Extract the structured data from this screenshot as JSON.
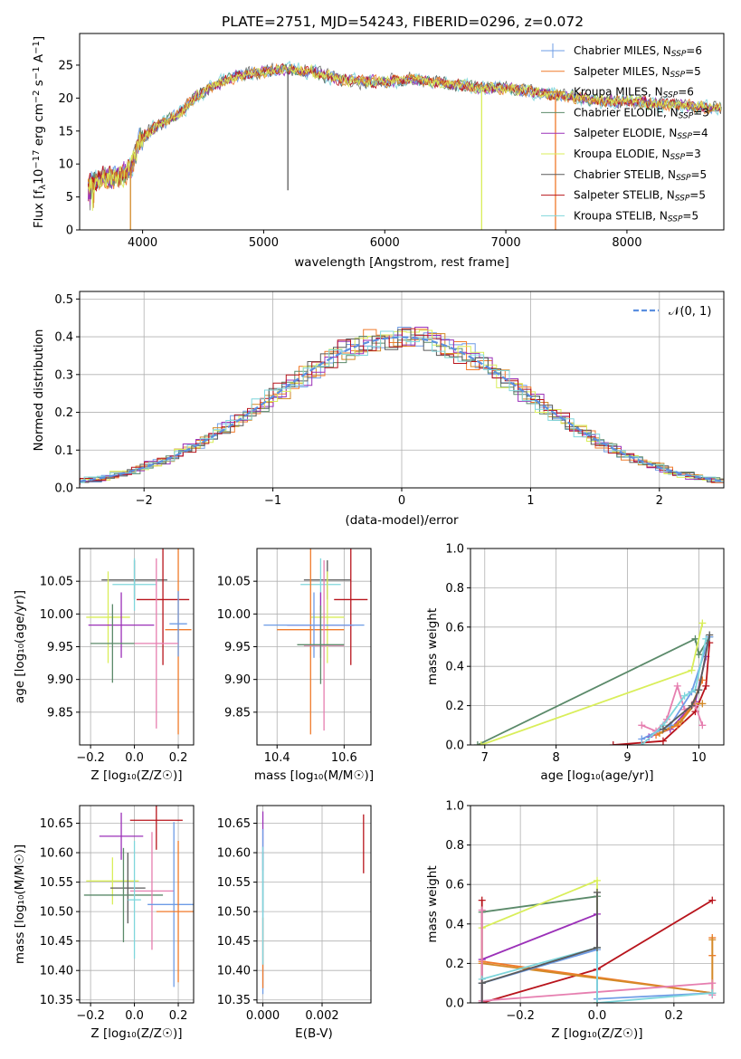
{
  "colors": {
    "Chabrier MILES": "#6e9ce6",
    "Salpeter MILES": "#f07a2a",
    "Kroupa MILES": "#d38a28",
    "Chabrier ELODIE": "#5b8a6a",
    "Salpeter ELODIE": "#9b30b8",
    "Kroupa ELODIE": "#d9ee5a",
    "Chabrier STELIB": "#5a5a5a",
    "Salpeter STELIB": "#b8141c",
    "Kroupa STELIB": "#7fd6dc",
    "pink": "#e67fb0",
    "gauss": "#5b8fe0"
  },
  "chart_data": [
    {
      "id": "spectrum",
      "type": "line",
      "title": "PLATE=2751, MJD=54243, FIBERID=0296, z=0.072",
      "xlabel": "wavelength [Angstrom, rest frame]",
      "ylabel_parts": [
        "Flux [f",
        "λ",
        "10",
        "−17",
        " erg cm",
        "−2",
        " s",
        "−1",
        " A",
        "−1",
        "]"
      ],
      "xlim": [
        3480,
        8800
      ],
      "ylim": [
        0,
        29.8
      ],
      "xticks": [
        "4000",
        "5000",
        "6000",
        "7000",
        "8000"
      ],
      "yticks": [
        "0",
        "5",
        "10",
        "15",
        "20",
        "25"
      ],
      "continuum_x": [
        3550,
        3700,
        3800,
        3900,
        3960,
        4000,
        4100,
        4200,
        4300,
        4400,
        4500,
        4600,
        4800,
        5000,
        5200,
        5400,
        5600,
        5800,
        6000,
        6200,
        6400,
        6600,
        6800,
        7000,
        7200,
        7400,
        7600,
        7800,
        8000,
        8200,
        8400,
        8600,
        8800
      ],
      "continuum_y": [
        7,
        8,
        8,
        9,
        13,
        14,
        15.5,
        16.5,
        17.5,
        19.5,
        21,
        22,
        23.5,
        24,
        24.5,
        24,
        23,
        22.5,
        22.5,
        22.8,
        22.5,
        22,
        21.5,
        21.5,
        21,
        20.5,
        20,
        19.5,
        19.5,
        19.2,
        19,
        18.6,
        18.5
      ],
      "spikes": [
        {
          "x": 3900,
          "to": 0,
          "color": "#d38a28"
        },
        {
          "x": 5200,
          "to": 6,
          "color": "#5a5a5a"
        },
        {
          "x": 6800,
          "to": 0,
          "color": "#d9ee5a"
        },
        {
          "x": 7410,
          "to": 0,
          "color": "#f07a2a"
        }
      ],
      "legend": [
        {
          "name": "Chabrier MILES",
          "sub": "SSP",
          "n": "=6"
        },
        {
          "name": "Salpeter MILES",
          "sub": "SSP",
          "n": "=5"
        },
        {
          "name": "Kroupa MILES",
          "sub": "SSP",
          "n": "=6"
        },
        {
          "name": "Chabrier ELODIE",
          "sub": "SSP",
          "n": "=3"
        },
        {
          "name": "Salpeter ELODIE",
          "sub": "SSP",
          "n": "=4"
        },
        {
          "name": "Kroupa ELODIE",
          "sub": "SSP",
          "n": "=3"
        },
        {
          "name": "Chabrier STELIB",
          "sub": "SSP",
          "n": "=5"
        },
        {
          "name": "Salpeter STELIB",
          "sub": "SSP",
          "n": "=5"
        },
        {
          "name": "Kroupa STELIB",
          "sub": "SSP",
          "n": "=5"
        }
      ],
      "legend_prefix": "N"
    },
    {
      "id": "residuals",
      "type": "step",
      "xlabel": "(data-model)/error",
      "ylabel": "Normed distribution",
      "xlim": [
        -2.5,
        2.5
      ],
      "ylim": [
        0,
        0.52
      ],
      "xticks": [
        "−2",
        "−1",
        "0",
        "1",
        "2"
      ],
      "xtick_values": [
        -2,
        -1,
        0,
        1,
        2
      ],
      "yticks": [
        "0.0",
        "0.1",
        "0.2",
        "0.3",
        "0.4",
        "0.5"
      ],
      "ytick_values": [
        0,
        0.1,
        0.2,
        0.3,
        0.4,
        0.5
      ],
      "bin_width": 0.1,
      "gauss_label": "𝒩(0, 1)",
      "gauss_mu": 0,
      "gauss_sigma": 1
    },
    {
      "id": "age_vs_Z",
      "type": "errorbar",
      "xlabel": "Z [log₁₀(Z/Z☉)]",
      "ylabel": "age  [log₁₀(age/yr)]",
      "xlim": [
        -0.25,
        0.27
      ],
      "ylim": [
        9.8,
        10.1
      ],
      "xticks": [
        "−0.2",
        "0.0",
        "0.2"
      ],
      "xtick_values": [
        -0.2,
        0,
        0.2
      ],
      "yticks": [
        "9.85",
        "9.90",
        "9.95",
        "10.00",
        "10.05"
      ],
      "ytick_values": [
        9.85,
        9.9,
        9.95,
        10.0,
        10.05
      ],
      "points": [
        {
          "x": 0.0,
          "y": 10.052,
          "xerr": 0.15,
          "yerr": 0.03,
          "color": "#5a5a5a"
        },
        {
          "x": 0.0,
          "y": 10.045,
          "xerr": 0.1,
          "yerr": 0.04,
          "color": "#7fd6dc"
        },
        {
          "x": 0.13,
          "y": 10.022,
          "xerr": 0.12,
          "yerr": 0.1,
          "color": "#b8141c"
        },
        {
          "x": -0.12,
          "y": 9.995,
          "xerr": 0.1,
          "yerr": 0.07,
          "color": "#d9ee5a"
        },
        {
          "x": -0.06,
          "y": 9.983,
          "xerr": 0.15,
          "yerr": 0.05,
          "color": "#9b30b8"
        },
        {
          "x": 0.2,
          "y": 9.976,
          "xerr": 0.06,
          "yerr": 0.16,
          "color": "#f07a2a"
        },
        {
          "x": 0.2,
          "y": 9.985,
          "xerr": 0.04,
          "yerr": 0.05,
          "color": "#6e9ce6"
        },
        {
          "x": 0.1,
          "y": 9.955,
          "xerr": 0.1,
          "yerr": 0.13,
          "color": "#e67fb0"
        },
        {
          "x": -0.1,
          "y": 9.955,
          "xerr": 0.1,
          "yerr": 0.06,
          "color": "#5b8a6a"
        }
      ]
    },
    {
      "id": "age_vs_mass",
      "type": "errorbar",
      "xlabel": "mass [log₁₀(M/M☉)]",
      "ylabel": "",
      "xlim": [
        10.34,
        10.68
      ],
      "ylim": [
        9.8,
        10.1
      ],
      "xticks": [
        "10.4",
        "10.6"
      ],
      "xtick_values": [
        10.4,
        10.6
      ],
      "yticks": [
        "9.85",
        "9.90",
        "9.95",
        "10.00",
        "10.05"
      ],
      "ytick_values": [
        9.85,
        9.9,
        9.95,
        10.0,
        10.05
      ],
      "points": [
        {
          "x": 10.55,
          "y": 10.052,
          "xerr": 0.07,
          "yerr": 0.03,
          "color": "#5a5a5a"
        },
        {
          "x": 10.53,
          "y": 10.045,
          "xerr": 0.06,
          "yerr": 0.04,
          "color": "#7fd6dc"
        },
        {
          "x": 10.62,
          "y": 10.022,
          "xerr": 0.05,
          "yerr": 0.1,
          "color": "#b8141c"
        },
        {
          "x": 10.55,
          "y": 9.995,
          "xerr": 0.05,
          "yerr": 0.07,
          "color": "#d9ee5a"
        },
        {
          "x": 10.53,
          "y": 9.983,
          "xerr": 0.1,
          "yerr": 0.05,
          "color": "#9b30b8"
        },
        {
          "x": 10.5,
          "y": 9.976,
          "xerr": 0.1,
          "yerr": 0.16,
          "color": "#f07a2a"
        },
        {
          "x": 10.51,
          "y": 9.983,
          "xerr": 0.15,
          "yerr": 0.05,
          "color": "#6e9ce6"
        },
        {
          "x": 10.54,
          "y": 9.952,
          "xerr": 0.06,
          "yerr": 0.13,
          "color": "#e67fb0"
        },
        {
          "x": 10.53,
          "y": 9.953,
          "xerr": 0.07,
          "yerr": 0.06,
          "color": "#5b8a6a"
        }
      ]
    },
    {
      "id": "weight_vs_age",
      "type": "line",
      "xlabel": "age  [log₁₀(age/yr)]",
      "ylabel": "mass weight",
      "xlim": [
        6.8,
        10.35
      ],
      "ylim": [
        0,
        1
      ],
      "xticks": [
        "7",
        "8",
        "9",
        "10"
      ],
      "xtick_values": [
        7,
        8,
        9,
        10
      ],
      "yticks": [
        "0.0",
        "0.2",
        "0.4",
        "0.6",
        "0.8",
        "1.0"
      ],
      "ytick_values": [
        0,
        0.2,
        0.4,
        0.6,
        0.8,
        1.0
      ],
      "series": [
        {
          "color": "#5b8a6a",
          "x": [
            6.9,
            9.95,
            10.0,
            10.15
          ],
          "y": [
            0.0,
            0.54,
            0.46,
            0.55
          ]
        },
        {
          "color": "#d9ee5a",
          "x": [
            6.95,
            9.9,
            10.05
          ],
          "y": [
            0.0,
            0.38,
            0.62
          ]
        },
        {
          "color": "#9b30b8",
          "x": [
            9.3,
            9.6,
            9.95,
            10.1
          ],
          "y": [
            0.04,
            0.08,
            0.22,
            0.45
          ]
        },
        {
          "color": "#b8141c",
          "x": [
            8.8,
            9.5,
            9.95,
            10.1,
            10.15
          ],
          "y": [
            0.0,
            0.02,
            0.17,
            0.3,
            0.52
          ]
        },
        {
          "color": "#f07a2a",
          "x": [
            9.4,
            9.7,
            9.9,
            10.05
          ],
          "y": [
            0.05,
            0.1,
            0.2,
            0.33
          ]
        },
        {
          "color": "#d38a28",
          "x": [
            9.45,
            9.75,
            9.95,
            10.05
          ],
          "y": [
            0.06,
            0.12,
            0.21,
            0.21
          ]
        },
        {
          "color": "#e67fb0",
          "x": [
            9.2,
            9.4,
            9.55,
            9.7,
            9.8,
            9.95,
            10.05
          ],
          "y": [
            0.1,
            0.07,
            0.13,
            0.3,
            0.18,
            0.2,
            0.1
          ]
        },
        {
          "color": "#6e9ce6",
          "x": [
            9.2,
            9.6,
            9.9,
            10.15
          ],
          "y": [
            0.03,
            0.1,
            0.27,
            0.55
          ]
        },
        {
          "color": "#7fd6dc",
          "x": [
            9.2,
            9.5,
            9.8,
            9.95,
            10.1
          ],
          "y": [
            0.0,
            0.1,
            0.25,
            0.28,
            0.54
          ]
        },
        {
          "color": "#5a5a5a",
          "x": [
            9.5,
            9.9,
            10.0,
            10.15
          ],
          "y": [
            0.08,
            0.2,
            0.28,
            0.56
          ]
        }
      ]
    },
    {
      "id": "mass_vs_Z",
      "type": "errorbar",
      "xlabel": "Z [log₁₀(Z/Z☉)]",
      "ylabel": "mass [log₁₀(M/M☉)]",
      "xlim": [
        -0.25,
        0.27
      ],
      "ylim": [
        10.345,
        10.68
      ],
      "xticks": [
        "−0.2",
        "0.0",
        "0.2"
      ],
      "xtick_values": [
        -0.2,
        0,
        0.2
      ],
      "yticks": [
        "10.35",
        "10.40",
        "10.45",
        "10.50",
        "10.55",
        "10.60",
        "10.65"
      ],
      "ytick_values": [
        10.35,
        10.4,
        10.45,
        10.5,
        10.55,
        10.6,
        10.65
      ],
      "points": [
        {
          "x": 0.1,
          "y": 10.655,
          "xerr": 0.12,
          "yerr": 0.05,
          "color": "#b8141c"
        },
        {
          "x": -0.06,
          "y": 10.628,
          "xerr": 0.1,
          "yerr": 0.04,
          "color": "#9b30b8"
        },
        {
          "x": -0.1,
          "y": 10.552,
          "xerr": 0.12,
          "yerr": 0.04,
          "color": "#d9ee5a"
        },
        {
          "x": -0.03,
          "y": 10.54,
          "xerr": 0.08,
          "yerr": 0.06,
          "color": "#5a5a5a"
        },
        {
          "x": -0.05,
          "y": 10.528,
          "xerr": 0.18,
          "yerr": 0.08,
          "color": "#5b8a6a"
        },
        {
          "x": 0.08,
          "y": 10.535,
          "xerr": 0.1,
          "yerr": 0.1,
          "color": "#e67fb0"
        },
        {
          "x": 0.18,
          "y": 10.512,
          "xerr": 0.12,
          "yerr": 0.14,
          "color": "#6e9ce6"
        },
        {
          "x": 0.2,
          "y": 10.5,
          "xerr": 0.1,
          "yerr": 0.12,
          "color": "#f07a2a"
        },
        {
          "x": 0.0,
          "y": 10.52,
          "xerr": 0.03,
          "yerr": 0.1,
          "color": "#7fd6dc"
        }
      ]
    },
    {
      "id": "mass_vs_EBV",
      "type": "errorbar",
      "xlabel": "E(B-V)",
      "ylabel": "",
      "xlim": [
        -0.0002,
        0.00365
      ],
      "ylim": [
        10.345,
        10.68
      ],
      "xticks": [
        "0.000",
        "0.002"
      ],
      "xtick_values": [
        0,
        0.002
      ],
      "yticks": [
        "10.35",
        "10.40",
        "10.45",
        "10.50",
        "10.55",
        "10.60",
        "10.65"
      ],
      "ytick_values": [
        10.35,
        10.4,
        10.45,
        10.5,
        10.55,
        10.6,
        10.65
      ],
      "points": [
        {
          "x": 0.0034,
          "y": 10.615,
          "xerr": 0,
          "yerr": 0.05,
          "color": "#b8141c"
        },
        {
          "x": 0.0,
          "y": 10.62,
          "xerr": 0,
          "yerr": 0.05,
          "color": "#9b30b8"
        },
        {
          "x": 0.0,
          "y": 10.55,
          "xerr": 0,
          "yerr": 0.05,
          "color": "#5b8a6a"
        },
        {
          "x": 0.0,
          "y": 10.5,
          "xerr": 0,
          "yerr": 0.14,
          "color": "#6e9ce6"
        },
        {
          "x": 0.0,
          "y": 10.43,
          "xerr": 0,
          "yerr": 0.06,
          "color": "#f07a2a"
        },
        {
          "x": 0.0,
          "y": 10.51,
          "xerr": 0,
          "yerr": 0.1,
          "color": "#7fd6dc"
        }
      ]
    },
    {
      "id": "weight_vs_Z",
      "type": "line",
      "xlabel": "Z [log₁₀(Z/Z☉)]",
      "ylabel": "mass weight",
      "xlim": [
        -0.33,
        0.33
      ],
      "ylim": [
        0,
        1
      ],
      "xticks": [
        "−0.2",
        "0.0",
        "0.2"
      ],
      "xtick_values": [
        -0.2,
        0,
        0.2
      ],
      "yticks": [
        "0.0",
        "0.2",
        "0.4",
        "0.6",
        "0.8",
        "1.0"
      ],
      "ytick_values": [
        0,
        0.2,
        0.4,
        0.6,
        0.8,
        1.0
      ],
      "series": [
        {
          "color": "#5b8a6a",
          "x": [
            -0.3,
            -0.3,
            0.0,
            0.0
          ],
          "y": [
            0.0,
            0.46,
            0.54,
            0.0
          ]
        },
        {
          "color": "#d9ee5a",
          "x": [
            -0.3,
            -0.3,
            0.0,
            0.0
          ],
          "y": [
            0.0,
            0.38,
            0.62,
            0.0
          ]
        },
        {
          "color": "#9b30b8",
          "x": [
            -0.3,
            -0.3,
            0.0,
            0.0
          ],
          "y": [
            0.0,
            0.22,
            0.45,
            0.02
          ]
        },
        {
          "color": "#b8141c",
          "x": [
            -0.3,
            -0.3,
            0.0,
            0.3
          ],
          "y": [
            0.52,
            0.0,
            0.17,
            0.52
          ]
        },
        {
          "color": "#f07a2a",
          "x": [
            -0.3,
            0.3,
            0.3,
            0.3
          ],
          "y": [
            0.21,
            0.05,
            0.24,
            0.33
          ]
        },
        {
          "color": "#d38a28",
          "x": [
            -0.3,
            0.3,
            0.3
          ],
          "y": [
            0.2,
            0.05,
            0.32
          ]
        },
        {
          "color": "#e67fb0",
          "x": [
            -0.3,
            -0.3,
            0.3,
            0.3
          ],
          "y": [
            0.47,
            0.01,
            0.1,
            0.04
          ]
        },
        {
          "color": "#6e9ce6",
          "x": [
            -0.3,
            -0.3,
            0.0,
            0.0,
            0.3
          ],
          "y": [
            0.0,
            0.1,
            0.27,
            0.02,
            0.05
          ]
        },
        {
          "color": "#7fd6dc",
          "x": [
            -0.3,
            0.0,
            0.0,
            0.3
          ],
          "y": [
            0.12,
            0.28,
            0.0,
            0.05
          ]
        },
        {
          "color": "#5a5a5a",
          "x": [
            -0.3,
            -0.3,
            0.0,
            0.0
          ],
          "y": [
            0.0,
            0.1,
            0.28,
            0.56
          ]
        }
      ]
    }
  ]
}
